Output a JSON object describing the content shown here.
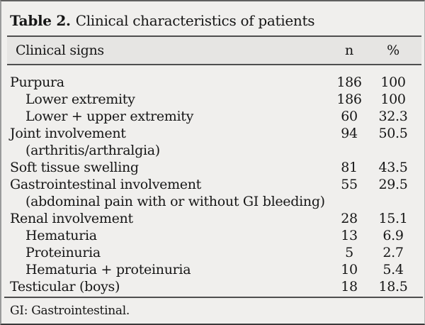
{
  "title": {
    "label": "Table 2.",
    "caption": "Clinical characteristics of patients"
  },
  "columns": {
    "signs": "Clinical signs",
    "n": "n",
    "pct": "%"
  },
  "rows": [
    {
      "label": "Purpura",
      "indent": 0,
      "n": "186",
      "pct": "100"
    },
    {
      "label": "Lower extremity",
      "indent": 1,
      "n": "186",
      "pct": "100"
    },
    {
      "label": "Lower + upper extremity",
      "indent": 1,
      "n": "60",
      "pct": "32.3"
    },
    {
      "label": "Joint involvement",
      "indent": 0,
      "n": "94",
      "pct": "50.5"
    },
    {
      "label": "(arthritis/arthralgia)",
      "indent": 1,
      "n": "",
      "pct": ""
    },
    {
      "label": "Soft tissue swelling",
      "indent": 0,
      "n": "81",
      "pct": "43.5"
    },
    {
      "label": "Gastrointestinal involvement",
      "indent": 0,
      "n": "55",
      "pct": "29.5"
    },
    {
      "label": "(abdominal pain with or without GI bleeding)",
      "indent": 1,
      "n": "",
      "pct": ""
    },
    {
      "label": "Renal involvement",
      "indent": 0,
      "n": "28",
      "pct": "15.1"
    },
    {
      "label": "Hematuria",
      "indent": 1,
      "n": "13",
      "pct": "6.9"
    },
    {
      "label": "Proteinuria",
      "indent": 1,
      "n": "5",
      "pct": "2.7"
    },
    {
      "label": "Hematuria + proteinuria",
      "indent": 1,
      "n": "10",
      "pct": "5.4"
    },
    {
      "label": "Testicular (boys)",
      "indent": 0,
      "n": "18",
      "pct": "18.5"
    }
  ],
  "footnote": "GI: Gastrointestinal.",
  "colors": {
    "page_bg": "#f0efed",
    "header_band_bg": "#e6e5e3",
    "rule": "#4f4f4f",
    "text": "#161616"
  }
}
